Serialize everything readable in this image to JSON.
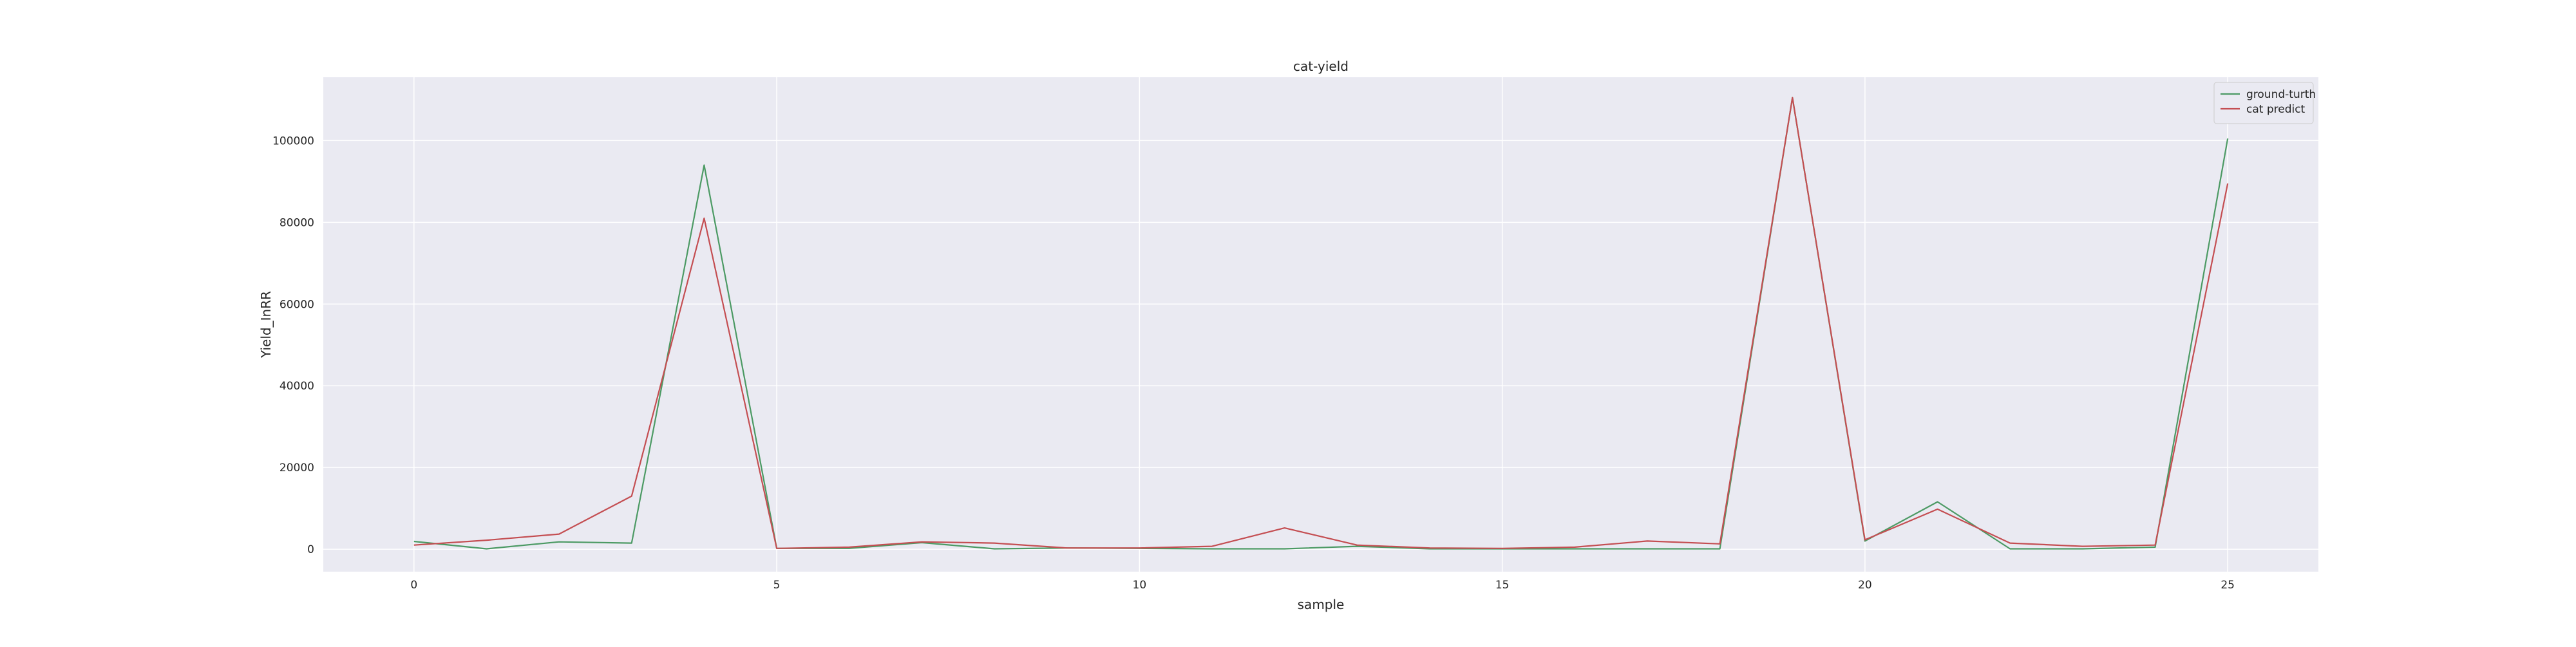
{
  "chart_data": {
    "type": "line",
    "title": "cat-yield",
    "xlabel": "sample",
    "ylabel": "Yield_InRR",
    "xlim": [
      -1.25,
      26.25
    ],
    "ylim": [
      -5500,
      115500
    ],
    "xticks": [
      0,
      5,
      10,
      15,
      20,
      25
    ],
    "xtick_labels": [
      "0",
      "5",
      "10",
      "15",
      "20",
      "25"
    ],
    "yticks": [
      0,
      20000,
      40000,
      60000,
      80000,
      100000
    ],
    "ytick_labels": [
      "0",
      "20000",
      "40000",
      "60000",
      "80000",
      "100000"
    ],
    "grid": true,
    "legend_position": "top-right",
    "x": [
      0,
      1,
      2,
      3,
      4,
      5,
      6,
      7,
      8,
      9,
      10,
      11,
      12,
      13,
      14,
      15,
      16,
      17,
      18,
      19,
      20,
      21,
      22,
      23,
      24,
      25
    ],
    "series": [
      {
        "name": "ground-turth",
        "color": "#4c9a64",
        "values": [
          1900,
          100,
          1800,
          1500,
          94000,
          200,
          200,
          1600,
          100,
          300,
          200,
          100,
          100,
          700,
          100,
          100,
          100,
          100,
          100,
          110500,
          2000,
          11600,
          100,
          100,
          500,
          100500
        ]
      },
      {
        "name": "cat predict",
        "color": "#c44e52",
        "values": [
          1000,
          2200,
          3700,
          13000,
          81000,
          200,
          500,
          1800,
          1500,
          300,
          300,
          700,
          5200,
          1000,
          300,
          200,
          500,
          2000,
          1300,
          110500,
          2300,
          9800,
          1500,
          700,
          1000,
          89500
        ]
      }
    ],
    "colors": {
      "plot_background": "#eaeaf2",
      "grid": "#ffffff"
    }
  }
}
